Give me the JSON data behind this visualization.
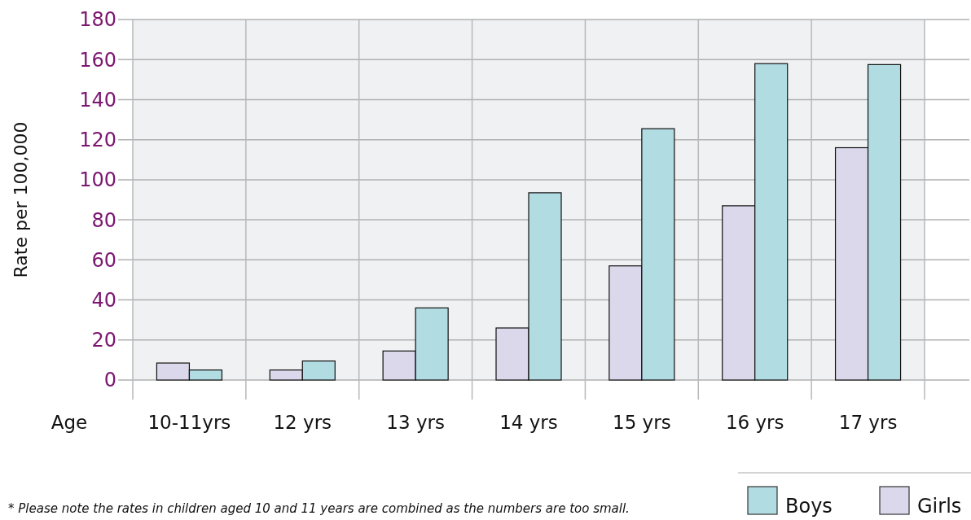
{
  "chart_data": {
    "type": "bar",
    "ylabel": "Rate per 100,000",
    "xlabel": "Age",
    "categories": [
      "10-11yrs",
      "12 yrs",
      "13 yrs",
      "14 yrs",
      "15 yrs",
      "16 yrs",
      "17 yrs"
    ],
    "series": [
      {
        "name": "Girls",
        "color": "#dcd8eb",
        "values": [
          8.5,
          5,
          14.5,
          26,
          57,
          87,
          116
        ]
      },
      {
        "name": "Boys",
        "color": "#b1dce2",
        "values": [
          5,
          9.5,
          36,
          93.5,
          125.5,
          158,
          157.5
        ]
      }
    ],
    "ylim": [
      0,
      180
    ],
    "yticks": [
      0,
      20,
      40,
      60,
      80,
      100,
      120,
      140,
      160,
      180
    ],
    "grid": true,
    "legend": "bottom right",
    "annotations": [
      "* Please note the rates in children aged 10 and 11 years are combined as the numbers are too small."
    ]
  }
}
